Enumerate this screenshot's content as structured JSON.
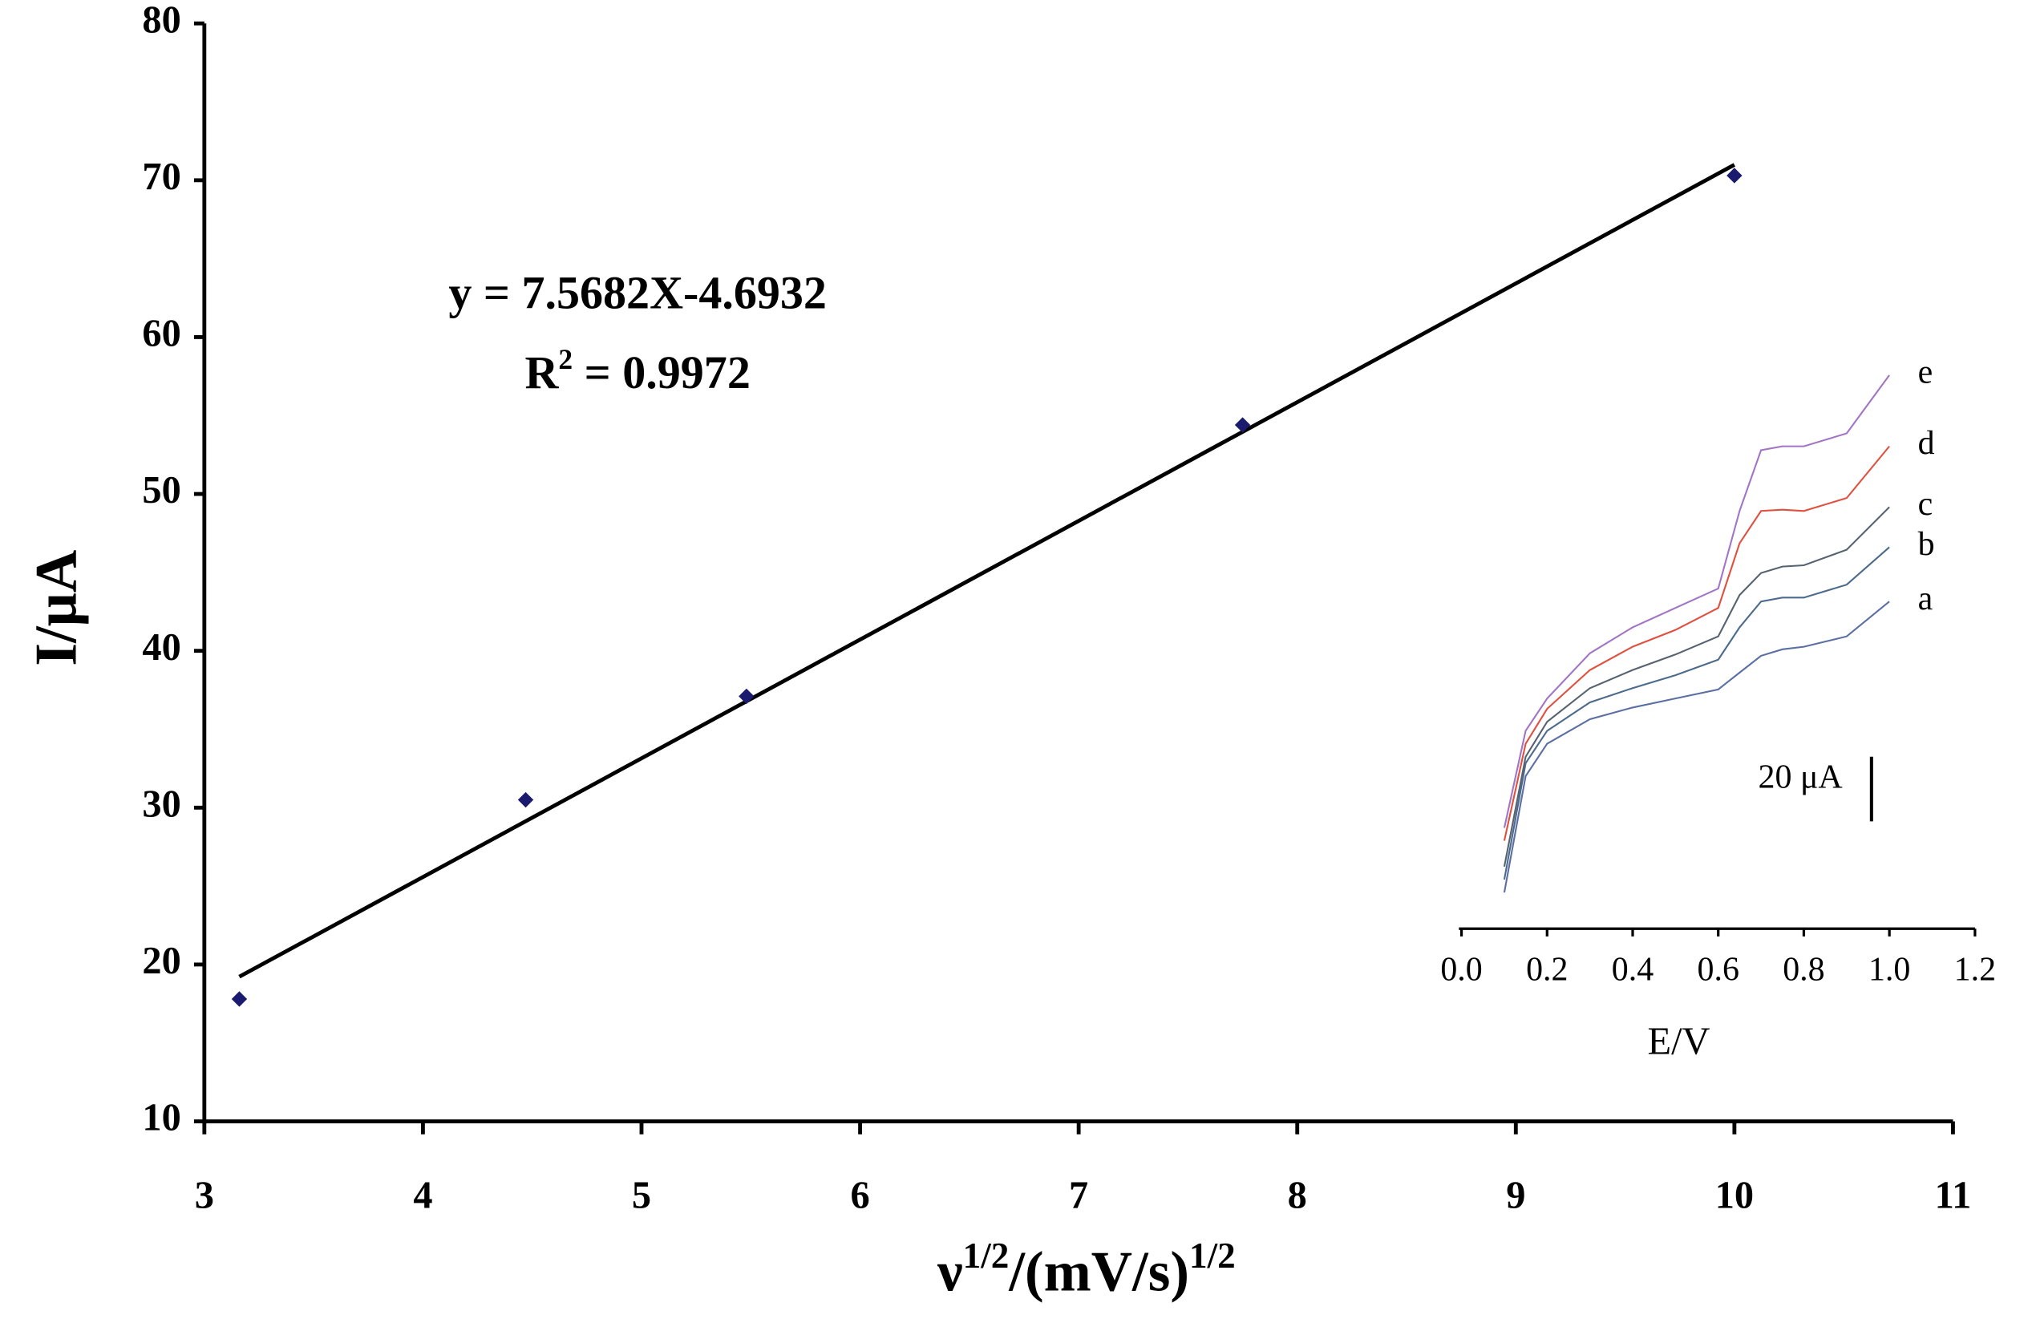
{
  "chart_data": [
    {
      "type": "scatter",
      "y_label": "I/μA",
      "x_label": [
        "ν",
        "1/2",
        "/(mV/s)",
        "1/2"
      ],
      "annotations": [
        "y = 7.5682X-4.6932",
        "R",
        "2",
        " = 0.9972"
      ],
      "x": [
        3.16,
        4.47,
        5.48,
        7.75,
        10.0
      ],
      "values": [
        17.8,
        30.5,
        37.1,
        54.4,
        70.3
      ],
      "color": "#1a1a6e",
      "fit": {
        "x": [
          3.16,
          10.0
        ],
        "values": [
          19.22,
          70.99
        ],
        "color": "#000000"
      },
      "xlim": [
        3,
        11
      ],
      "xticks": [
        3,
        4,
        5,
        6,
        7,
        8,
        9,
        10,
        11
      ],
      "ylim": [
        10,
        80
      ],
      "yticks": [
        10,
        20,
        30,
        40,
        50,
        60,
        70,
        80
      ]
    },
    {
      "type": "line",
      "x_label": "E/V",
      "x": [
        0.1,
        0.15,
        0.2,
        0.3,
        0.4,
        0.5,
        0.6,
        0.65,
        0.7,
        0.75,
        0.8,
        0.9,
        1.0
      ],
      "series": [
        {
          "name": "a",
          "color": "#5b6fa3",
          "values": [
            11.2,
            47.2,
            57.2,
            64.8,
            68.4,
            71.2,
            74,
            79.2,
            84.4,
            86.4,
            87.2,
            90.4,
            101.2
          ]
        },
        {
          "name": "b",
          "color": "#4b6b8c",
          "values": [
            15.2,
            51.2,
            61.2,
            70,
            74.4,
            78.4,
            83.2,
            93.2,
            101.2,
            102.4,
            102.4,
            106.4,
            118
          ]
        },
        {
          "name": "c",
          "color": "#566270",
          "values": [
            19.2,
            53.2,
            64,
            74.4,
            80,
            84.8,
            90.4,
            103.2,
            110,
            112,
            112.4,
            117.2,
            130.4
          ]
        },
        {
          "name": "d",
          "color": "#e0503f",
          "values": [
            27.2,
            57.2,
            68,
            80,
            87.2,
            92.4,
            99.2,
            119.2,
            129.2,
            129.6,
            129.2,
            133.2,
            149.2
          ]
        },
        {
          "name": "e",
          "color": "#a274c4",
          "values": [
            31.2,
            61.2,
            71.2,
            85.2,
            93.2,
            99.2,
            105.2,
            129.2,
            148,
            149.2,
            149.2,
            153.2,
            171.2
          ]
        }
      ],
      "scale_bar": {
        "value": 20,
        "label": "20 μA"
      },
      "xlim": [
        0,
        1.2
      ],
      "xticks": [
        {
          "value": 0,
          "label": "0.0"
        },
        {
          "value": 0.2,
          "label": "0.2"
        },
        {
          "value": 0.4,
          "label": "0.4"
        },
        {
          "value": 0.6,
          "label": "0.6"
        },
        {
          "value": 0.8,
          "label": "0.8"
        },
        {
          "value": 1.0,
          "label": "1.0"
        },
        {
          "value": 1.2,
          "label": "1.2"
        }
      ],
      "ylim": [
        0,
        180
      ]
    }
  ]
}
